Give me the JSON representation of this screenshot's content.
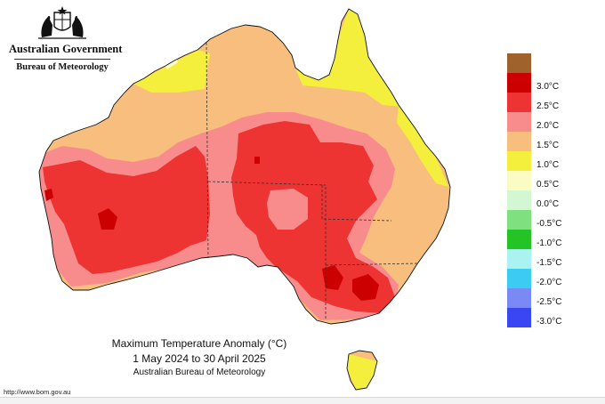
{
  "header": {
    "gov_name": "Australian Government",
    "agency": "Bureau of Meteorology"
  },
  "title": {
    "line1": "Maximum Temperature Anomaly (°C)",
    "line2": "1 May 2024 to 30 April 2025",
    "line3": "Australian Bureau of Meteorology"
  },
  "legend": [
    {
      "label": "",
      "color": "#a0622d"
    },
    {
      "label": "3.0°C",
      "color": "#cc0000"
    },
    {
      "label": "2.5°C",
      "color": "#ee3333"
    },
    {
      "label": "2.0°C",
      "color": "#f88c8c"
    },
    {
      "label": "1.5°C",
      "color": "#f7be7d"
    },
    {
      "label": "1.0°C",
      "color": "#f4ee3c"
    },
    {
      "label": "0.5°C",
      "color": "#fafcc4"
    },
    {
      "label": "0.0°C",
      "color": "#d2f7d2"
    },
    {
      "label": "-0.5°C",
      "color": "#7fe07f"
    },
    {
      "label": "-1.0°C",
      "color": "#25c325"
    },
    {
      "label": "-1.5°C",
      "color": "#aaf3f0"
    },
    {
      "label": "-2.0°C",
      "color": "#3ccbf3"
    },
    {
      "label": "-2.5°C",
      "color": "#7a8af4"
    },
    {
      "label": "-3.0°C",
      "color": "#3a46f2"
    }
  ],
  "footer": {
    "url": "http://www.bom.gov.au"
  }
}
